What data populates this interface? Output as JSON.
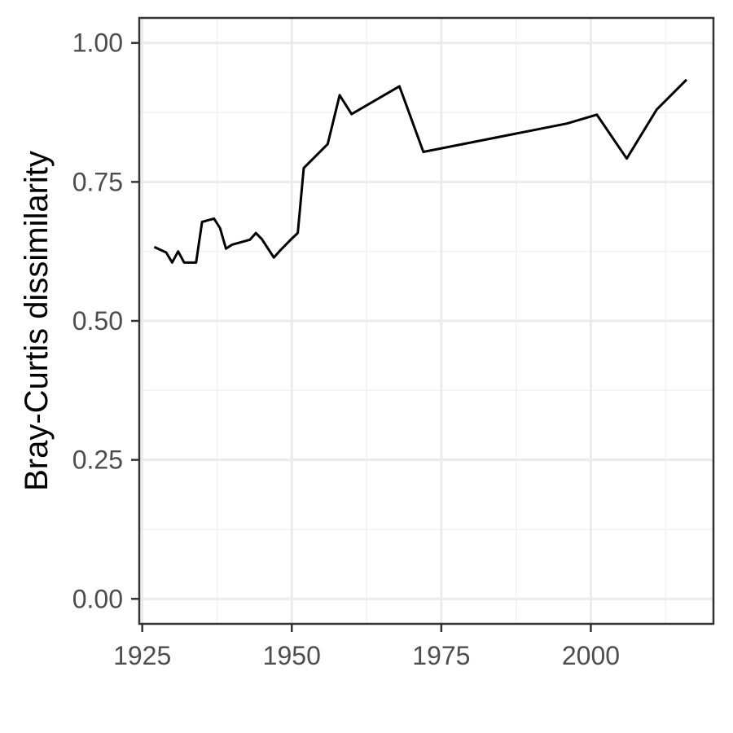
{
  "chart_data": {
    "type": "line",
    "title": "",
    "xlabel": "",
    "ylabel": "Bray-Curtis dissimilarity",
    "xlim": [
      1924.5,
      2020.5
    ],
    "ylim": [
      -0.045,
      1.045
    ],
    "x_ticks": [
      1925,
      1950,
      1975,
      2000
    ],
    "x_tick_labels": [
      "1925",
      "1950",
      "1975",
      "2000"
    ],
    "x_minor_ticks": [
      1937.5,
      1962.5,
      1987.5,
      2012.5
    ],
    "y_ticks": [
      0.0,
      0.25,
      0.5,
      0.75,
      1.0
    ],
    "y_tick_labels": [
      "0.00",
      "0.25",
      "0.50",
      "0.75",
      "1.00"
    ],
    "y_minor_ticks": [
      0.125,
      0.375,
      0.625,
      0.875
    ],
    "grid": true,
    "legend": "none",
    "series": [
      {
        "x": [
          1927,
          1929,
          1930,
          1931,
          1932,
          1934,
          1935,
          1937,
          1938,
          1939,
          1940,
          1941,
          1943,
          1944,
          1945,
          1947,
          1948,
          1950,
          1951,
          1952,
          1956,
          1958,
          1960,
          1968,
          1972,
          1996,
          2001,
          2006,
          2011,
          2016
        ],
        "y": [
          0.633,
          0.623,
          0.605,
          0.625,
          0.605,
          0.605,
          0.678,
          0.684,
          0.667,
          0.63,
          0.637,
          0.64,
          0.646,
          0.658,
          0.647,
          0.614,
          0.626,
          0.648,
          0.658,
          0.775,
          0.818,
          0.906,
          0.872,
          0.922,
          0.804,
          0.855,
          0.871,
          0.792,
          0.88,
          0.934
        ],
        "color": "#000000"
      }
    ],
    "colors": {
      "panel_border": "#333333",
      "major_grid": "#ebebeb",
      "minor_grid": "#f2f2f2",
      "tick_text": "#4d4d4d",
      "axis_title": "#000000",
      "line": "#000000"
    }
  }
}
